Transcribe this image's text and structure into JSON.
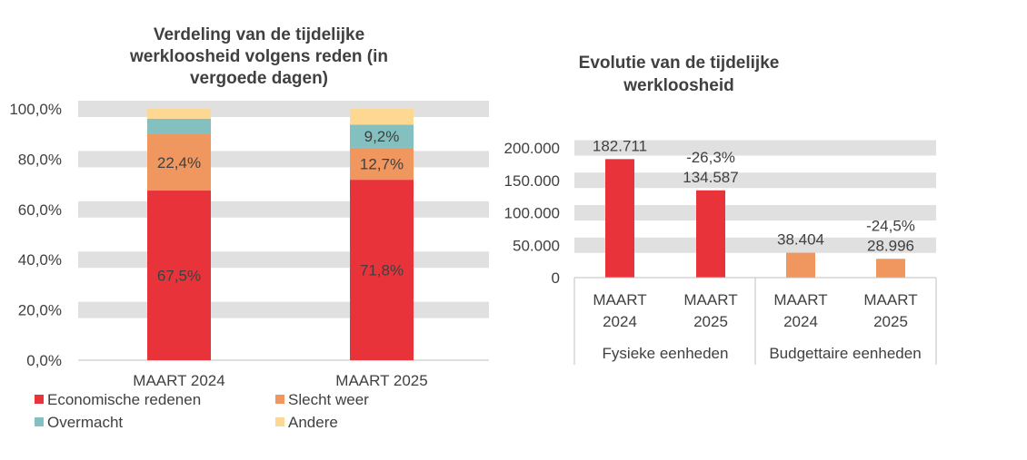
{
  "chart_data": [
    {
      "type": "bar",
      "stacked": true,
      "title": [
        "Verdeling van de tijdelijke",
        "werkloosheid volgens reden (in",
        "vergoede dagen)"
      ],
      "categories": [
        "MAART 2024",
        "MAART 2025"
      ],
      "ylim": [
        0,
        100
      ],
      "yticks": [
        "0,0%",
        "20,0%",
        "40,0%",
        "60,0%",
        "80,0%",
        "100,0%"
      ],
      "grid": true,
      "legend_position": "bottom",
      "series": [
        {
          "name": "Economische redenen",
          "color": "#E8333A",
          "values": [
            67.5,
            71.8
          ],
          "labels": [
            "67,5%",
            "71,8%"
          ]
        },
        {
          "name": "Slecht weer",
          "color": "#F0975F",
          "values": [
            22.4,
            12.7
          ],
          "labels": [
            "22,4%",
            "12,7%"
          ]
        },
        {
          "name": "Overmacht",
          "color": "#84C0C0",
          "values": [
            6.2,
            9.2
          ],
          "labels": [
            "",
            "9,2%"
          ]
        },
        {
          "name": "Andere",
          "color": "#FDD893",
          "values": [
            3.9,
            6.3
          ],
          "labels": [
            "",
            ""
          ]
        }
      ]
    },
    {
      "type": "bar",
      "title": [
        "Evolutie van de tijdelijke",
        "werkloosheid"
      ],
      "groups": [
        "Fysieke eenheden",
        "Budgettaire eenheden"
      ],
      "categories": [
        [
          "MAART",
          "2024"
        ],
        [
          "MAART",
          "2025"
        ],
        [
          "MAART",
          "2024"
        ],
        [
          "MAART",
          "2025"
        ]
      ],
      "values": [
        182711,
        134587,
        38404,
        28996
      ],
      "value_labels": [
        "182.711",
        "134.587",
        "38.404",
        "28.996"
      ],
      "change_labels": [
        "",
        "-26,3%",
        "",
        "-24,5%"
      ],
      "colors": [
        "#E8333A",
        "#E8333A",
        "#F0975F",
        "#F0975F"
      ],
      "ylim": [
        0,
        200000
      ],
      "yticks": [
        "0",
        "50.000",
        "100.000",
        "150.000",
        "200.000"
      ],
      "grid": true
    }
  ]
}
